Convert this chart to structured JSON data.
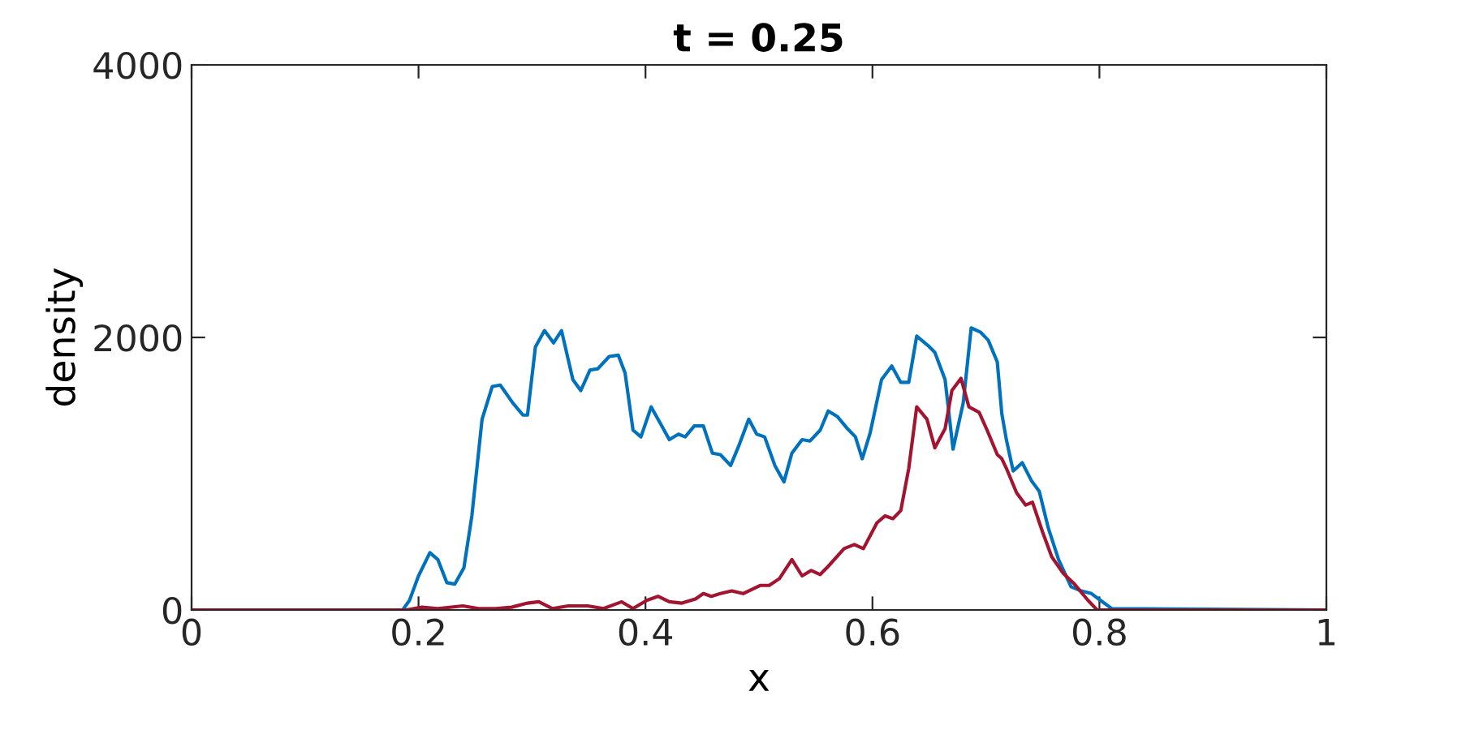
{
  "chart_data": {
    "type": "line",
    "title": "t = 0.25",
    "xlabel": "x",
    "ylabel": "density",
    "xlim": [
      0,
      1
    ],
    "ylim": [
      0,
      4000
    ],
    "xticks": [
      0,
      0.2,
      0.4,
      0.6,
      0.8,
      1
    ],
    "yticks": [
      0,
      2000,
      4000
    ],
    "grid": false,
    "legend": false,
    "marker": "none",
    "line_style": "solid",
    "series": [
      {
        "color": "#0072bd",
        "x": [
          0,
          0.186,
          0.192,
          0.2,
          0.21,
          0.217,
          0.225,
          0.232,
          0.24,
          0.247,
          0.256,
          0.265,
          0.272,
          0.283,
          0.292,
          0.296,
          0.303,
          0.311,
          0.319,
          0.326,
          0.336,
          0.343,
          0.351,
          0.358,
          0.368,
          0.376,
          0.382,
          0.389,
          0.396,
          0.405,
          0.413,
          0.421,
          0.429,
          0.435,
          0.443,
          0.451,
          0.459,
          0.466,
          0.475,
          0.482,
          0.491,
          0.498,
          0.505,
          0.514,
          0.522,
          0.529,
          0.538,
          0.545,
          0.554,
          0.561,
          0.569,
          0.578,
          0.585,
          0.591,
          0.598,
          0.608,
          0.617,
          0.625,
          0.632,
          0.639,
          0.649,
          0.655,
          0.664,
          0.671,
          0.68,
          0.687,
          0.695,
          0.702,
          0.71,
          0.714,
          0.718,
          0.724,
          0.732,
          0.74,
          0.747,
          0.755,
          0.764,
          0.775,
          0.784,
          0.793,
          0.801,
          0.811,
          1
        ],
        "values": [
          0,
          0,
          70,
          250,
          420,
          370,
          200,
          190,
          310,
          690,
          1400,
          1640,
          1650,
          1520,
          1430,
          1430,
          1930,
          2050,
          1960,
          2050,
          1690,
          1610,
          1760,
          1770,
          1860,
          1870,
          1740,
          1320,
          1270,
          1490,
          1370,
          1250,
          1290,
          1270,
          1350,
          1350,
          1150,
          1140,
          1060,
          1200,
          1400,
          1290,
          1270,
          1060,
          940,
          1150,
          1250,
          1240,
          1320,
          1460,
          1420,
          1330,
          1270,
          1110,
          1300,
          1690,
          1790,
          1670,
          1670,
          2010,
          1940,
          1890,
          1690,
          1180,
          1520,
          2070,
          2040,
          1980,
          1820,
          1440,
          1250,
          1020,
          1080,
          950,
          870,
          600,
          370,
          170,
          140,
          120,
          70,
          10,
          0
        ]
      },
      {
        "color": "#a2142f",
        "x": [
          0,
          0.189,
          0.203,
          0.217,
          0.239,
          0.253,
          0.268,
          0.282,
          0.296,
          0.306,
          0.318,
          0.332,
          0.349,
          0.363,
          0.379,
          0.389,
          0.401,
          0.411,
          0.421,
          0.432,
          0.444,
          0.451,
          0.458,
          0.466,
          0.476,
          0.486,
          0.501,
          0.509,
          0.518,
          0.529,
          0.538,
          0.546,
          0.554,
          0.561,
          0.575,
          0.584,
          0.592,
          0.604,
          0.611,
          0.618,
          0.625,
          0.632,
          0.639,
          0.648,
          0.655,
          0.664,
          0.67,
          0.678,
          0.685,
          0.694,
          0.701,
          0.71,
          0.714,
          0.718,
          0.727,
          0.735,
          0.741,
          0.75,
          0.758,
          0.768,
          0.778,
          0.79,
          0.798,
          1
        ],
        "values": [
          0,
          0,
          20,
          10,
          30,
          10,
          10,
          20,
          50,
          60,
          10,
          30,
          30,
          10,
          60,
          10,
          70,
          100,
          60,
          50,
          80,
          120,
          100,
          120,
          140,
          120,
          180,
          180,
          230,
          370,
          250,
          290,
          260,
          320,
          450,
          480,
          450,
          640,
          690,
          670,
          730,
          1040,
          1490,
          1400,
          1190,
          1330,
          1610,
          1700,
          1490,
          1450,
          1320,
          1140,
          1110,
          1040,
          860,
          770,
          790,
          570,
          390,
          270,
          190,
          70,
          0,
          0
        ]
      }
    ]
  }
}
